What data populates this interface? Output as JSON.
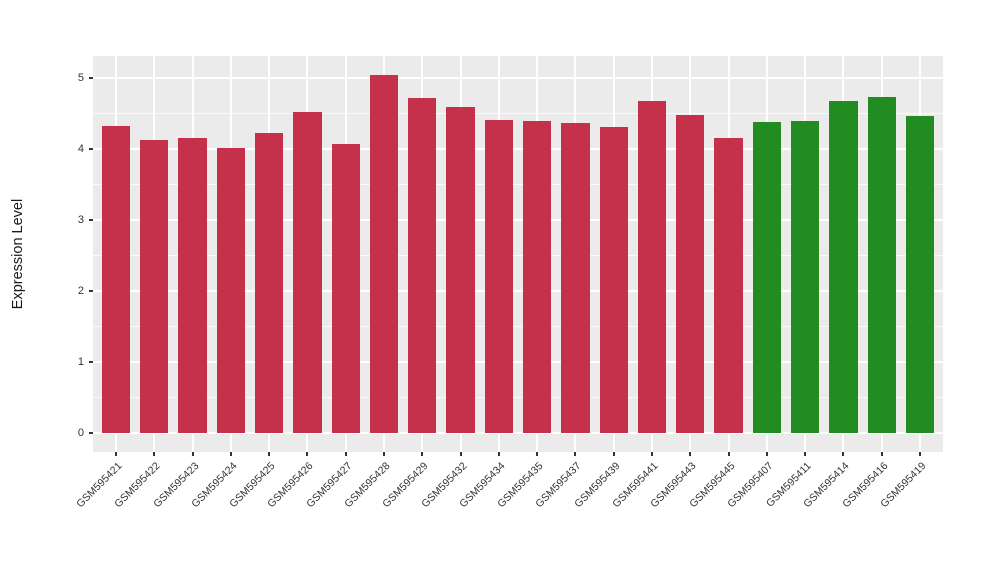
{
  "chart_data": {
    "type": "bar",
    "title": "",
    "xlabel": "",
    "ylabel": "Expression Level",
    "ylim": [
      0,
      5.3
    ],
    "yticks": [
      0,
      1,
      2,
      3,
      4,
      5
    ],
    "yticks_minor": [
      0.5,
      1.5,
      2.5,
      3.5,
      4.5
    ],
    "grid": true,
    "legend_position": "none",
    "panel_bg": "#EBEBEB",
    "grid_color": "#FFFFFF",
    "axis_text_color": "#333333",
    "group_colors": {
      "red": "#C5304A",
      "green": "#228B22"
    },
    "bars": [
      {
        "label": "GSM595421",
        "value": 4.32,
        "group": "red"
      },
      {
        "label": "GSM595422",
        "value": 4.13,
        "group": "red"
      },
      {
        "label": "GSM595423",
        "value": 4.16,
        "group": "red"
      },
      {
        "label": "GSM595424",
        "value": 4.01,
        "group": "red"
      },
      {
        "label": "GSM595425",
        "value": 4.22,
        "group": "red"
      },
      {
        "label": "GSM595426",
        "value": 4.52,
        "group": "red"
      },
      {
        "label": "GSM595427",
        "value": 4.07,
        "group": "red"
      },
      {
        "label": "GSM595428",
        "value": 5.04,
        "group": "red"
      },
      {
        "label": "GSM595429",
        "value": 4.72,
        "group": "red"
      },
      {
        "label": "GSM595432",
        "value": 4.59,
        "group": "red"
      },
      {
        "label": "GSM595434",
        "value": 4.41,
        "group": "red"
      },
      {
        "label": "GSM595435",
        "value": 4.4,
        "group": "red"
      },
      {
        "label": "GSM595437",
        "value": 4.36,
        "group": "red"
      },
      {
        "label": "GSM595439",
        "value": 4.31,
        "group": "red"
      },
      {
        "label": "GSM595441",
        "value": 4.68,
        "group": "red"
      },
      {
        "label": "GSM595443",
        "value": 4.48,
        "group": "red"
      },
      {
        "label": "GSM595445",
        "value": 4.16,
        "group": "red"
      },
      {
        "label": "GSM595407",
        "value": 4.38,
        "group": "green"
      },
      {
        "label": "GSM595411",
        "value": 4.39,
        "group": "green"
      },
      {
        "label": "GSM595414",
        "value": 4.68,
        "group": "green"
      },
      {
        "label": "GSM595416",
        "value": 4.73,
        "group": "green"
      },
      {
        "label": "GSM595419",
        "value": 4.46,
        "group": "green"
      }
    ]
  }
}
